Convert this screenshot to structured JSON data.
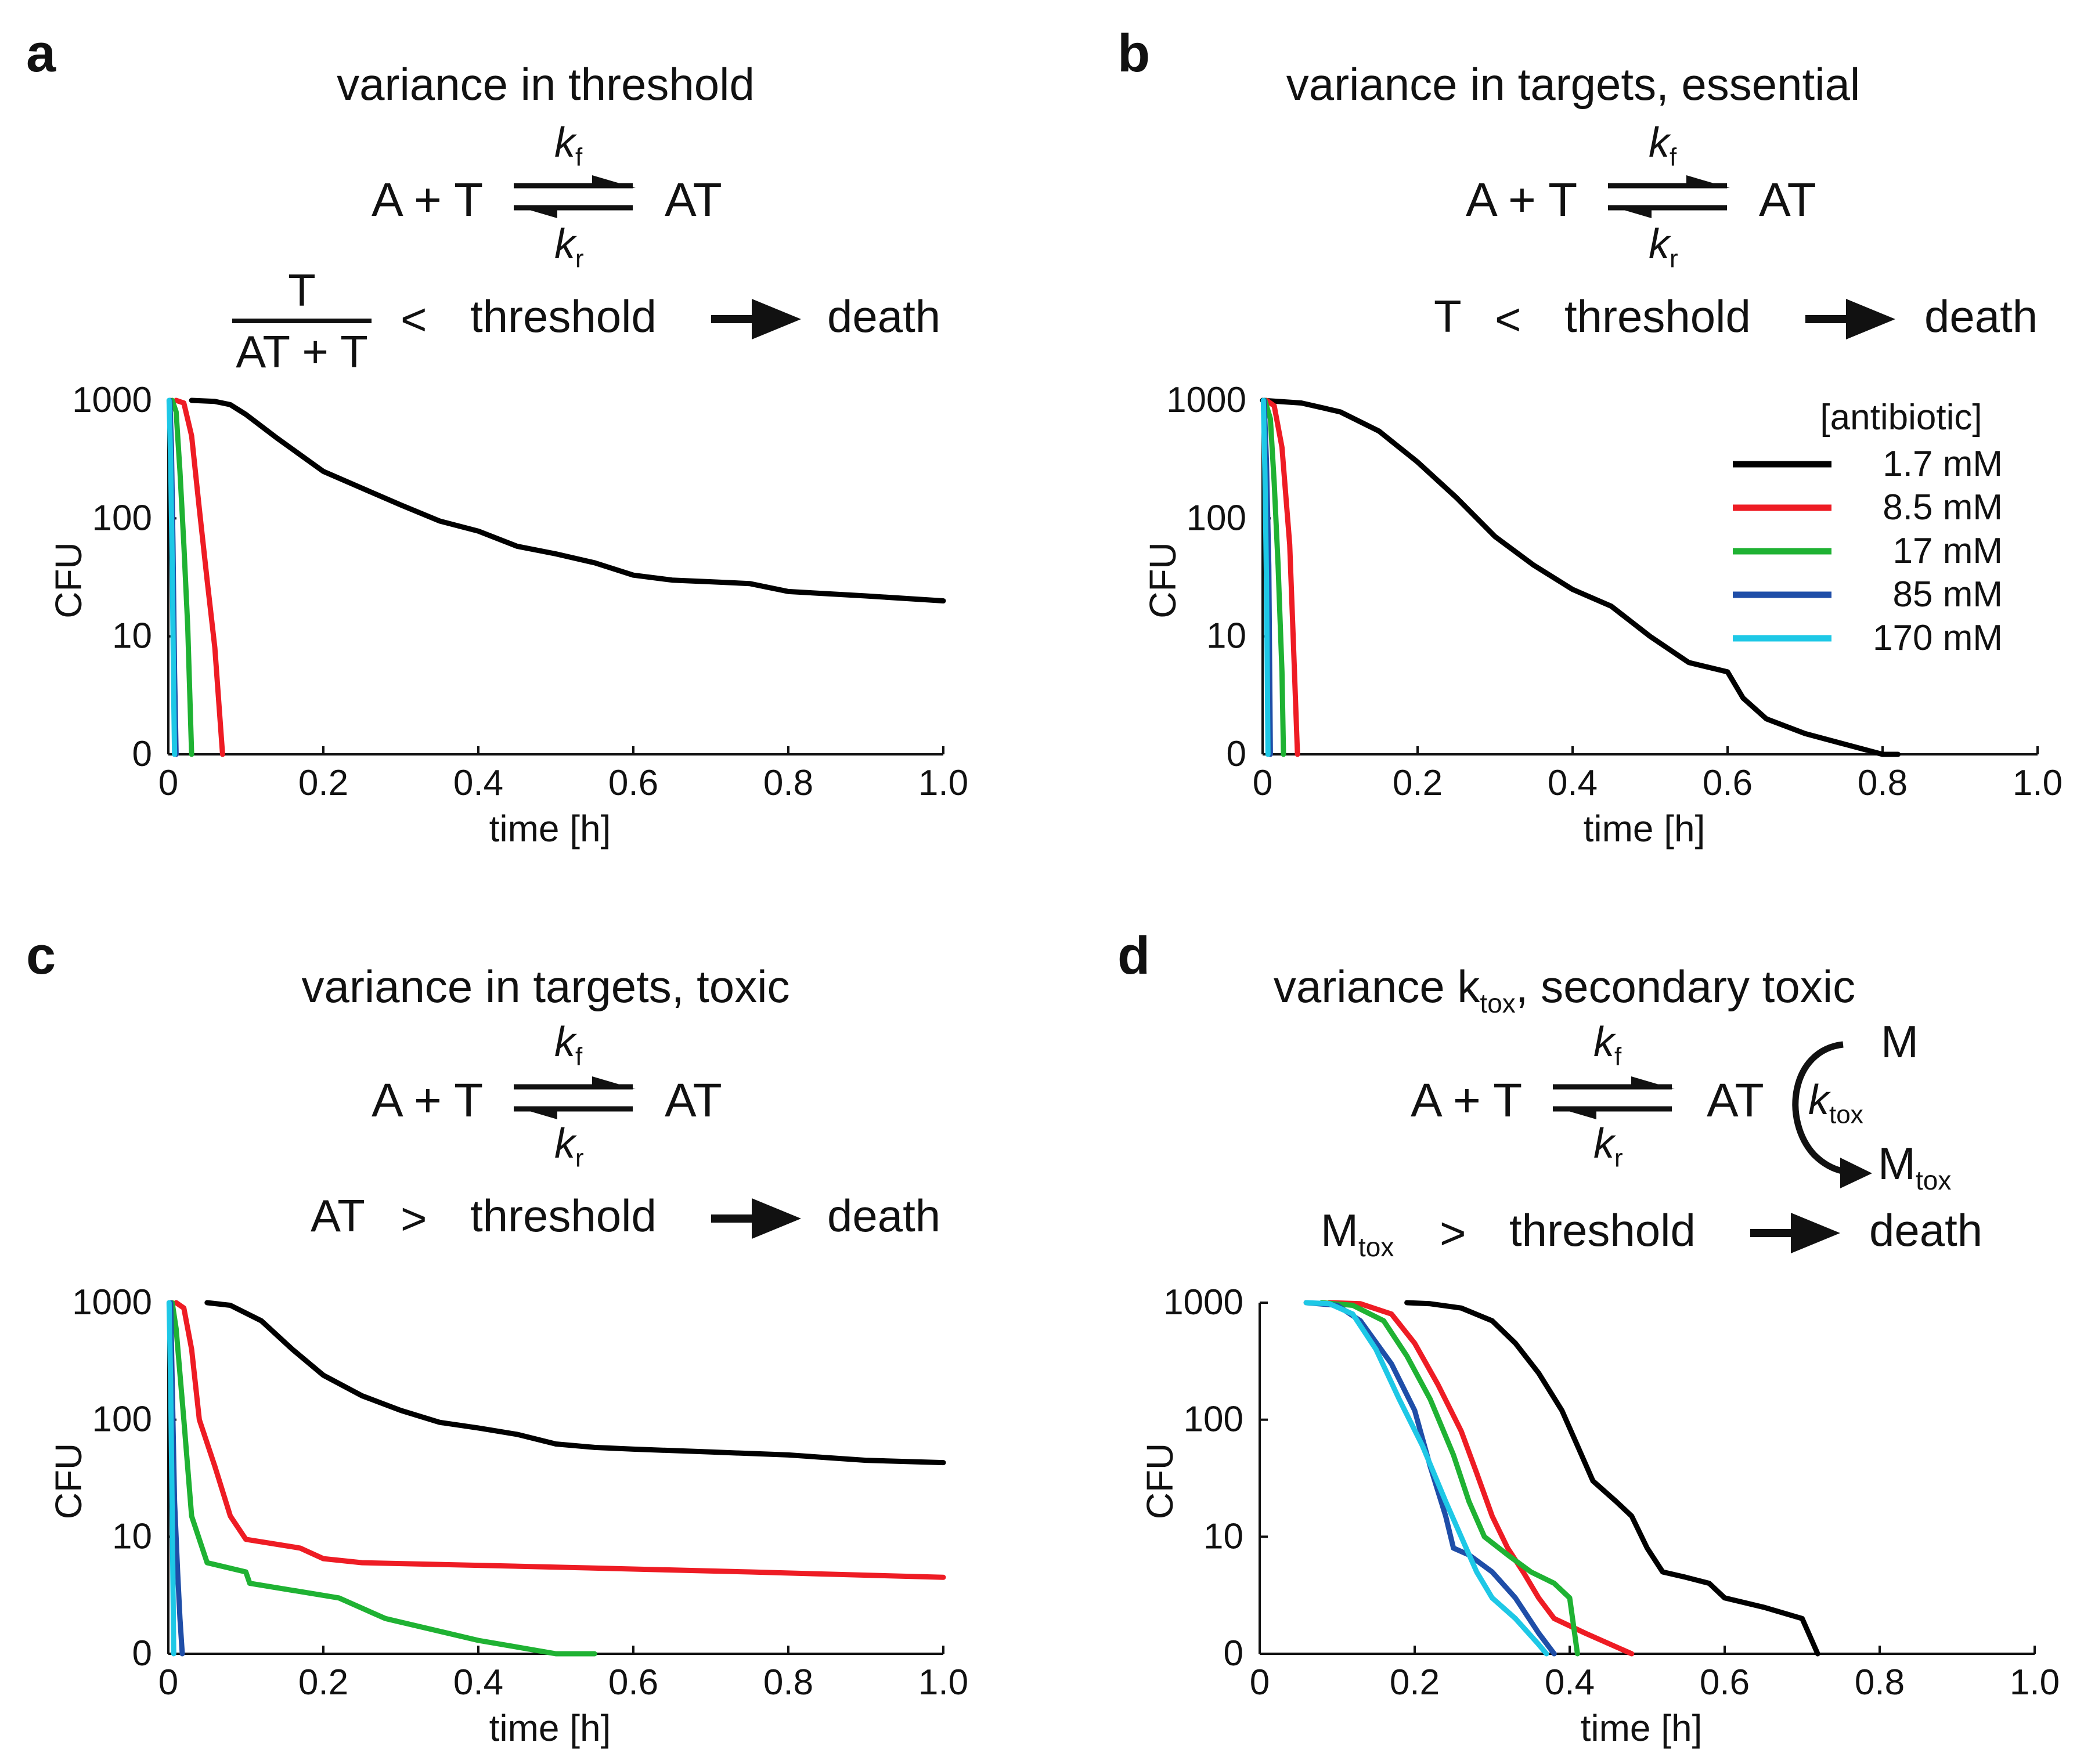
{
  "panels": {
    "a": {
      "letter": "a",
      "title": "variance in threshold",
      "eq_left": "A + T",
      "eq_right": "AT",
      "kf": "k",
      "kf_sub": "f",
      "kr": "k",
      "kr_sub": "r",
      "frac_num": "T",
      "frac_den": "AT + T",
      "cmp": "<",
      "threshold": "threshold",
      "death": "death"
    },
    "b": {
      "letter": "b",
      "title": "variance in targets, essential",
      "eq_left": "A + T",
      "eq_right": "AT",
      "kf": "k",
      "kf_sub": "f",
      "kr": "k",
      "kr_sub": "r",
      "lhs": "T",
      "cmp": "<",
      "threshold": "threshold",
      "death": "death"
    },
    "c": {
      "letter": "c",
      "title": "variance in targets, toxic",
      "eq_left": "A + T",
      "eq_right": "AT",
      "kf": "k",
      "kf_sub": "f",
      "kr": "k",
      "kr_sub": "r",
      "lhs": "AT",
      "cmp": ">",
      "threshold": "threshold",
      "death": "death"
    },
    "d": {
      "letter": "d",
      "title_pre": "variance k",
      "title_sub": "tox",
      "title_post": ", secondary toxic",
      "eq_left": "A + T",
      "eq_right": "AT",
      "kf": "k",
      "kf_sub": "f",
      "kr": "k",
      "kr_sub": "r",
      "m": "M",
      "ktox": "k",
      "ktox_sub": "tox",
      "mtox": "M",
      "mtox_sub": "tox",
      "lhs": "M",
      "lhs_sub": "tox",
      "cmp": ">",
      "threshold": "threshold",
      "death": "death"
    }
  },
  "legend": {
    "title": "[antibiotic]",
    "entries": [
      "1.7 mM",
      "8.5 mM",
      "17 mM",
      "85 mM",
      "170 mM"
    ]
  },
  "colors": [
    "#000000",
    "#ee1c24",
    "#1fb233",
    "#1f4ea8",
    "#1ec8e6"
  ],
  "chart_data": [
    {
      "panel": "a",
      "type": "line",
      "xlabel": "time [h]",
      "ylabel": "CFU",
      "xlim": [
        0,
        1.0
      ],
      "yscale": "log",
      "xticks": [
        "0",
        "0.2",
        "0.4",
        "0.6",
        "0.8",
        "1.0"
      ],
      "yticks": [
        "0",
        "10",
        "100",
        "1000"
      ],
      "series": [
        {
          "name": "1.7 mM",
          "points": [
            [
              0.03,
              1000
            ],
            [
              0.06,
              980
            ],
            [
              0.08,
              920
            ],
            [
              0.1,
              760
            ],
            [
              0.14,
              480
            ],
            [
              0.2,
              250
            ],
            [
              0.25,
              180
            ],
            [
              0.3,
              130
            ],
            [
              0.35,
              95
            ],
            [
              0.4,
              78
            ],
            [
              0.45,
              58
            ],
            [
              0.5,
              50
            ],
            [
              0.55,
              42
            ],
            [
              0.6,
              33
            ],
            [
              0.65,
              30
            ],
            [
              0.7,
              29
            ],
            [
              0.75,
              28
            ],
            [
              0.8,
              24
            ],
            [
              0.9,
              22
            ],
            [
              1.0,
              20
            ]
          ]
        },
        {
          "name": "8.5 mM",
          "points": [
            [
              0.01,
              1000
            ],
            [
              0.02,
              950
            ],
            [
              0.03,
              500
            ],
            [
              0.04,
              120
            ],
            [
              0.05,
              30
            ],
            [
              0.06,
              8
            ],
            [
              0.07,
              0
            ]
          ]
        },
        {
          "name": "17 mM",
          "points": [
            [
              0.005,
              1000
            ],
            [
              0.01,
              800
            ],
            [
              0.015,
              250
            ],
            [
              0.02,
              60
            ],
            [
              0.025,
              12
            ],
            [
              0.03,
              0
            ]
          ]
        },
        {
          "name": "85 mM",
          "points": [
            [
              0.002,
              1000
            ],
            [
              0.004,
              400
            ],
            [
              0.006,
              60
            ],
            [
              0.008,
              5
            ],
            [
              0.01,
              0
            ]
          ]
        },
        {
          "name": "170 mM",
          "points": [
            [
              0.001,
              1000
            ],
            [
              0.003,
              300
            ],
            [
              0.005,
              40
            ],
            [
              0.007,
              3
            ],
            [
              0.008,
              0
            ]
          ]
        }
      ]
    },
    {
      "panel": "b",
      "type": "line",
      "xlabel": "time [h]",
      "ylabel": "CFU",
      "xlim": [
        0,
        1.0
      ],
      "yscale": "log",
      "xticks": [
        "0",
        "0.2",
        "0.4",
        "0.6",
        "0.8",
        "1.0"
      ],
      "yticks": [
        "0",
        "10",
        "100",
        "1000"
      ],
      "series": [
        {
          "name": "1.7 mM",
          "points": [
            [
              0.0,
              1000
            ],
            [
              0.05,
              950
            ],
            [
              0.1,
              800
            ],
            [
              0.15,
              550
            ],
            [
              0.2,
              300
            ],
            [
              0.25,
              150
            ],
            [
              0.3,
              70
            ],
            [
              0.35,
              40
            ],
            [
              0.4,
              25
            ],
            [
              0.45,
              18
            ],
            [
              0.5,
              10
            ],
            [
              0.55,
              6
            ],
            [
              0.6,
              5
            ],
            [
              0.62,
              3
            ],
            [
              0.65,
              2
            ],
            [
              0.7,
              1.5
            ],
            [
              0.8,
              1.0
            ],
            [
              0.82,
              0
            ]
          ]
        },
        {
          "name": "8.5 mM",
          "points": [
            [
              0.005,
              1000
            ],
            [
              0.015,
              900
            ],
            [
              0.025,
              400
            ],
            [
              0.035,
              60
            ],
            [
              0.04,
              8
            ],
            [
              0.045,
              0
            ]
          ]
        },
        {
          "name": "17 mM",
          "points": [
            [
              0.003,
              1000
            ],
            [
              0.01,
              700
            ],
            [
              0.015,
              200
            ],
            [
              0.02,
              40
            ],
            [
              0.025,
              5
            ],
            [
              0.027,
              0
            ]
          ]
        },
        {
          "name": "85 mM",
          "points": [
            [
              0.002,
              1000
            ],
            [
              0.005,
              300
            ],
            [
              0.008,
              40
            ],
            [
              0.01,
              0
            ]
          ]
        },
        {
          "name": "170 mM",
          "points": [
            [
              0.001,
              1000
            ],
            [
              0.003,
              250
            ],
            [
              0.005,
              30
            ],
            [
              0.007,
              0
            ]
          ]
        }
      ]
    },
    {
      "panel": "c",
      "type": "line",
      "xlabel": "time [h]",
      "ylabel": "CFU",
      "xlim": [
        0,
        1.0
      ],
      "yscale": "log",
      "xticks": [
        "0",
        "0.2",
        "0.4",
        "0.6",
        "0.8",
        "1.0"
      ],
      "yticks": [
        "0",
        "10",
        "100",
        "1000"
      ],
      "series": [
        {
          "name": "1.7 mM",
          "points": [
            [
              0.05,
              1000
            ],
            [
              0.08,
              950
            ],
            [
              0.12,
              700
            ],
            [
              0.16,
              400
            ],
            [
              0.2,
              240
            ],
            [
              0.25,
              160
            ],
            [
              0.3,
              120
            ],
            [
              0.35,
              95
            ],
            [
              0.4,
              85
            ],
            [
              0.45,
              75
            ],
            [
              0.5,
              62
            ],
            [
              0.55,
              58
            ],
            [
              0.6,
              56
            ],
            [
              0.7,
              53
            ],
            [
              0.8,
              50
            ],
            [
              0.9,
              45
            ],
            [
              1.0,
              43
            ]
          ]
        },
        {
          "name": "8.5 mM",
          "points": [
            [
              0.01,
              1000
            ],
            [
              0.02,
              900
            ],
            [
              0.03,
              400
            ],
            [
              0.04,
              100
            ],
            [
              0.06,
              40
            ],
            [
              0.08,
              15
            ],
            [
              0.1,
              9.5
            ],
            [
              0.17,
              8
            ],
            [
              0.2,
              6.5
            ],
            [
              0.25,
              6
            ],
            [
              0.5,
              5.5
            ],
            [
              0.75,
              5
            ],
            [
              1.0,
              4.5
            ]
          ]
        },
        {
          "name": "17 mM",
          "points": [
            [
              0.005,
              1000
            ],
            [
              0.01,
              600
            ],
            [
              0.02,
              100
            ],
            [
              0.03,
              15
            ],
            [
              0.05,
              6
            ],
            [
              0.1,
              5
            ],
            [
              0.105,
              4
            ],
            [
              0.22,
              3
            ],
            [
              0.28,
              2
            ],
            [
              0.4,
              1.3
            ],
            [
              0.5,
              0.8
            ],
            [
              0.55,
              0
            ]
          ]
        },
        {
          "name": "85 mM",
          "points": [
            [
              0.003,
              1000
            ],
            [
              0.005,
              200
            ],
            [
              0.008,
              20
            ],
            [
              0.012,
              5
            ],
            [
              0.015,
              2
            ],
            [
              0.018,
              0
            ]
          ]
        },
        {
          "name": "170 mM",
          "points": [
            [
              0.001,
              1000
            ],
            [
              0.003,
              200
            ],
            [
              0.005,
              15
            ],
            [
              0.007,
              0
            ]
          ]
        }
      ]
    },
    {
      "panel": "d",
      "type": "line",
      "xlabel": "time [h]",
      "ylabel": "CFU",
      "xlim": [
        0,
        1.0
      ],
      "yscale": "log",
      "xticks": [
        "0",
        "0.2",
        "0.4",
        "0.6",
        "0.8",
        "1.0"
      ],
      "yticks": [
        "0",
        "10",
        "100",
        "1000"
      ],
      "series": [
        {
          "name": "1.7 mM",
          "points": [
            [
              0.19,
              1000
            ],
            [
              0.22,
              980
            ],
            [
              0.26,
              900
            ],
            [
              0.3,
              700
            ],
            [
              0.33,
              450
            ],
            [
              0.36,
              250
            ],
            [
              0.39,
              120
            ],
            [
              0.41,
              60
            ],
            [
              0.43,
              30
            ],
            [
              0.46,
              20
            ],
            [
              0.48,
              15
            ],
            [
              0.5,
              8
            ],
            [
              0.52,
              5
            ],
            [
              0.55,
              4.5
            ],
            [
              0.58,
              4
            ],
            [
              0.6,
              3
            ],
            [
              0.65,
              2.5
            ],
            [
              0.7,
              2
            ],
            [
              0.72,
              0
            ]
          ]
        },
        {
          "name": "8.5 mM",
          "points": [
            [
              0.09,
              1000
            ],
            [
              0.13,
              980
            ],
            [
              0.17,
              800
            ],
            [
              0.2,
              450
            ],
            [
              0.23,
              200
            ],
            [
              0.26,
              80
            ],
            [
              0.28,
              35
            ],
            [
              0.3,
              15
            ],
            [
              0.32,
              8
            ],
            [
              0.34,
              5
            ],
            [
              0.36,
              3
            ],
            [
              0.38,
              2
            ],
            [
              0.42,
              1.5
            ],
            [
              0.48,
              0
            ]
          ]
        },
        {
          "name": "17 mM",
          "points": [
            [
              0.08,
              1000
            ],
            [
              0.12,
              950
            ],
            [
              0.16,
              700
            ],
            [
              0.19,
              350
            ],
            [
              0.22,
              150
            ],
            [
              0.25,
              50
            ],
            [
              0.27,
              20
            ],
            [
              0.29,
              10
            ],
            [
              0.32,
              7
            ],
            [
              0.35,
              5
            ],
            [
              0.38,
              4
            ],
            [
              0.4,
              3
            ],
            [
              0.41,
              0
            ]
          ]
        },
        {
          "name": "85 mM",
          "points": [
            [
              0.06,
              1000
            ],
            [
              0.1,
              950
            ],
            [
              0.13,
              700
            ],
            [
              0.17,
              300
            ],
            [
              0.2,
              120
            ],
            [
              0.22,
              40
            ],
            [
              0.24,
              15
            ],
            [
              0.25,
              8
            ],
            [
              0.27,
              7
            ],
            [
              0.3,
              5
            ],
            [
              0.33,
              3
            ],
            [
              0.36,
              1.5
            ],
            [
              0.38,
              0
            ]
          ]
        },
        {
          "name": "170 mM",
          "points": [
            [
              0.06,
              1000
            ],
            [
              0.09,
              980
            ],
            [
              0.12,
              800
            ],
            [
              0.15,
              400
            ],
            [
              0.18,
              150
            ],
            [
              0.21,
              60
            ],
            [
              0.24,
              20
            ],
            [
              0.26,
              10
            ],
            [
              0.28,
              5
            ],
            [
              0.3,
              3
            ],
            [
              0.33,
              2
            ],
            [
              0.36,
              1.2
            ],
            [
              0.37,
              0
            ]
          ]
        }
      ]
    }
  ]
}
